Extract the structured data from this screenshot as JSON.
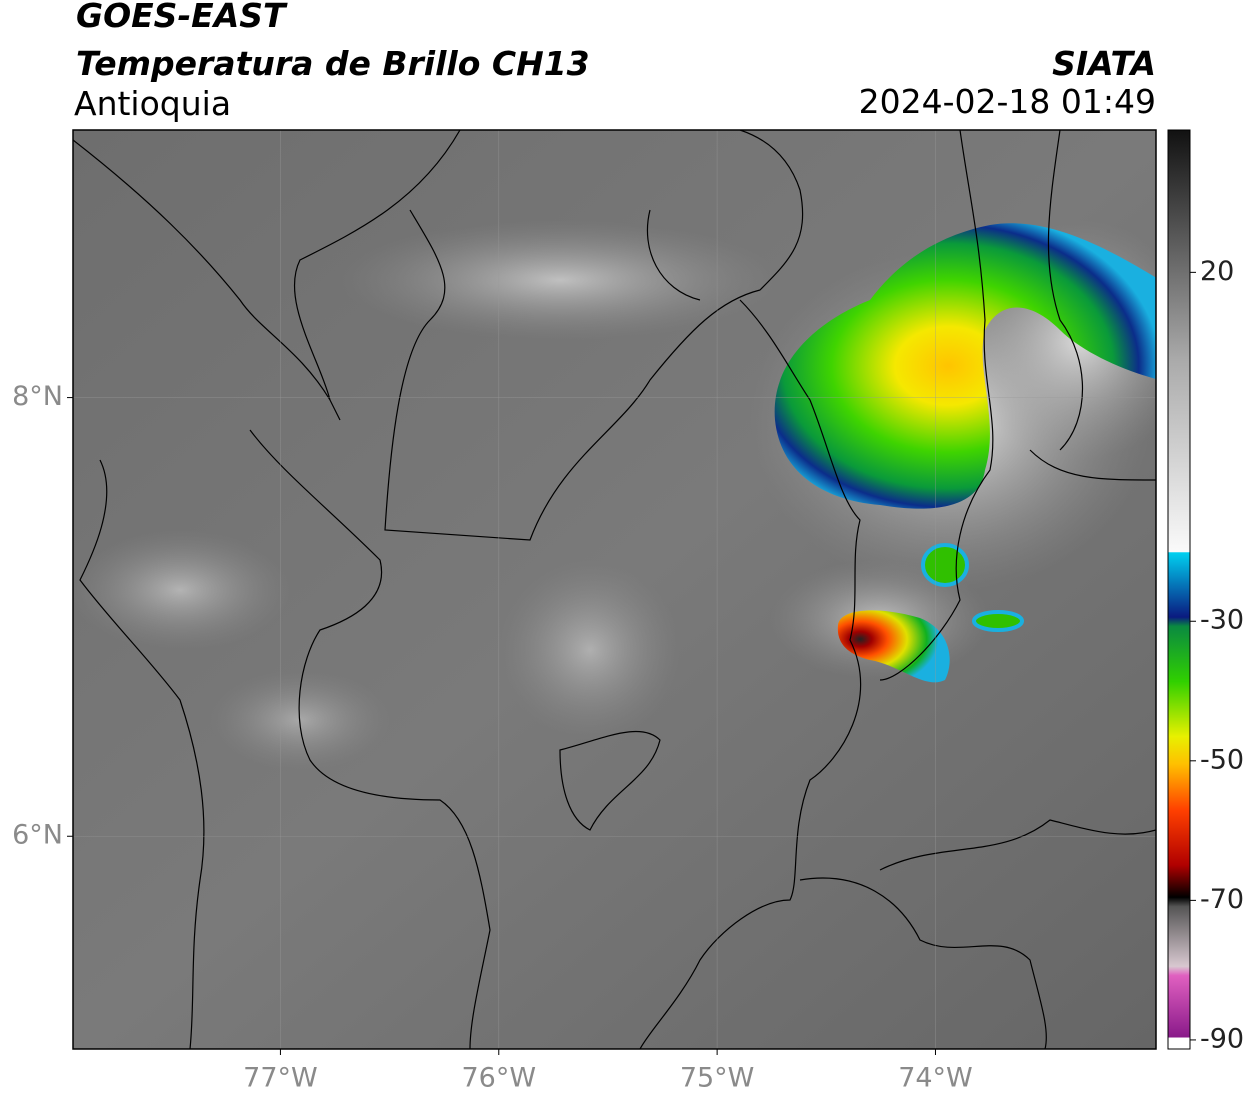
{
  "header": {
    "title": "GOES-EAST",
    "subtitle": "Temperatura de Brillo CH13",
    "region": "Antioquia",
    "source": "SIATA",
    "datetime": "2024-02-18 01:49"
  },
  "map": {
    "xlim": [
      -77.95,
      -72.99
    ],
    "ylim": [
      5.03,
      9.22
    ],
    "xticks": [
      {
        "value": -77,
        "label": "77°W"
      },
      {
        "value": -76,
        "label": "76°W"
      },
      {
        "value": -75,
        "label": "75°W"
      },
      {
        "value": -74,
        "label": "74°W"
      }
    ],
    "yticks": [
      {
        "value": 8,
        "label": "8°N"
      },
      {
        "value": 6,
        "label": "6°N"
      }
    ],
    "grid": true
  },
  "colorbar": {
    "clim": [
      -91.3,
      40.4
    ],
    "ticks": [
      20,
      -30,
      -50,
      -70,
      -90
    ]
  }
}
